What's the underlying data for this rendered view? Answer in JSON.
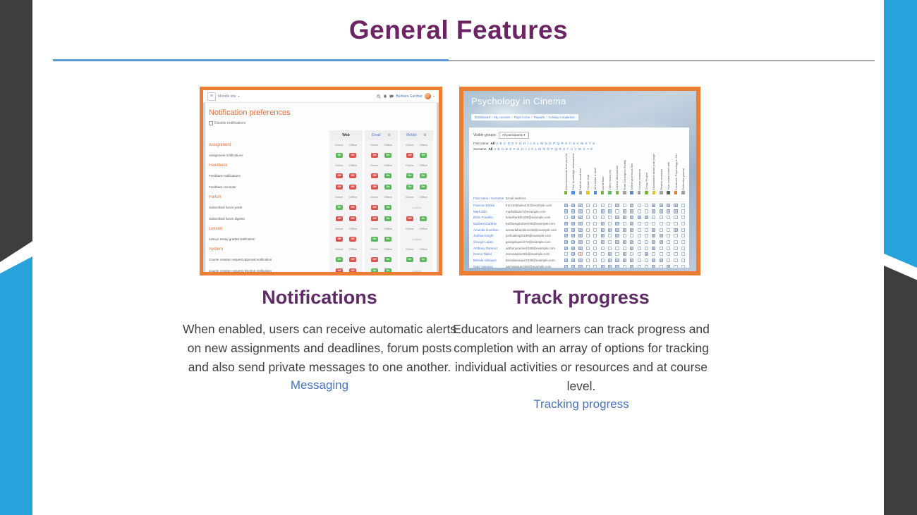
{
  "slide": {
    "title": "General Features"
  },
  "colors": {
    "title_purple": "#6D2465",
    "heading_purple": "#5E2B66",
    "link_blue": "#4472C4",
    "divider_blue": "#5B9BD5",
    "divider_gray": "#A6A6A6",
    "edge_blue": "#27A2DB",
    "edge_dark": "#3E3E3E",
    "screenshot_border_orange": "#ED7D31",
    "moodle_orange": "#EE6A31",
    "toggle_on_green": "#5CB85C",
    "toggle_off_red": "#D9534F"
  },
  "features": [
    {
      "heading": "Notifications",
      "body": "When enabled, users can receive automatic alerts on new assignments and deadlines, forum posts and also send private messages to one another.",
      "link": "Messaging"
    },
    {
      "heading": "Track progress",
      "body": "Educators and learners can track progress and completion with an array of options for tracking individual activities or resources and at course level.",
      "link": "Tracking progress"
    }
  ],
  "notification_screenshot": {
    "navbar": {
      "menu_icon": "hamburger-icon",
      "site_label": "Moodle site",
      "icons": [
        "search-icon",
        "bell-icon",
        "chat-icon"
      ],
      "user": "Barbara Gardner"
    },
    "page_title": "Notification preferences",
    "disable_label": "Disable notifications",
    "channels": [
      {
        "label": "Web",
        "gear": false
      },
      {
        "label": "Email",
        "gear": true
      },
      {
        "label": "Mobile",
        "gear": true
      }
    ],
    "online_label": "Online",
    "offline_label": "Offline",
    "locked_label": "Locked",
    "on_label": "On",
    "off_label": "Off",
    "rows": [
      {
        "type": "section",
        "label": "Assignment"
      },
      {
        "type": "item",
        "label": "Assignment notifications",
        "web": [
          "on",
          "off"
        ],
        "email": [
          "off",
          "on"
        ],
        "mobile": [
          "off",
          "on"
        ]
      },
      {
        "type": "section",
        "label": "Feedback"
      },
      {
        "type": "item",
        "label": "Feedback notifications",
        "web": [
          "off",
          "off"
        ],
        "email": [
          "off",
          "on"
        ],
        "mobile": [
          "on",
          "on"
        ]
      },
      {
        "type": "item",
        "label": "Feedback reminder",
        "web": [
          "off",
          "off"
        ],
        "email": [
          "off",
          "on"
        ],
        "mobile": [
          "on",
          "on"
        ]
      },
      {
        "type": "section",
        "label": "Forum"
      },
      {
        "type": "item",
        "label": "Subscribed forum posts",
        "web": [
          "on",
          "off"
        ],
        "email": [
          "off",
          "on"
        ],
        "mobile": "locked"
      },
      {
        "type": "item",
        "label": "Subscribed forum digests",
        "web": [
          "off",
          "off"
        ],
        "email": [
          "off",
          "on"
        ],
        "mobile": [
          "off",
          "on"
        ]
      },
      {
        "type": "section",
        "label": "Lesson"
      },
      {
        "type": "item",
        "label": "Lesson essay graded notification",
        "web": [
          "off",
          "off"
        ],
        "email": [
          "on",
          "on"
        ],
        "mobile": "locked"
      },
      {
        "type": "section",
        "label": "System"
      },
      {
        "type": "item",
        "label": "Course creation request approval notification",
        "web": [
          "on",
          "off"
        ],
        "email": [
          "off",
          "on"
        ],
        "mobile": [
          "on",
          "on"
        ]
      },
      {
        "type": "item",
        "label": "Course creation request rejection notification",
        "web": [
          "off",
          "off"
        ],
        "email": [
          "on",
          "on"
        ],
        "mobile": "locked"
      }
    ]
  },
  "progress_screenshot": {
    "course_title": "Psychology in Cinema",
    "breadcrumb": [
      "Dashboard",
      "My courses",
      "Psych Cine",
      "Reports",
      "Activity completion"
    ],
    "visible_groups_label": "Visible groups:",
    "visible_groups_value": "All participants",
    "first_name_label": "First name:",
    "surname_label": "Surname:",
    "all_label": "All",
    "letters": "A B C D E F G H I J K L M N O P Q R S T U V W X Y Z",
    "name_col_header": "First name / Surname",
    "email_col_header": "Email address",
    "activities": [
      {
        "name": "Announcements from your tutor",
        "icon_color": "#7CB342"
      },
      {
        "name": "Prior Knowledge assessment",
        "icon_color": "#4A90D9"
      },
      {
        "name": "Factual recall test",
        "icon_color": "#9E9E9E"
      },
      {
        "name": "Course chat",
        "icon_color": "#F0C419"
      },
      {
        "name": "Let's make a deal!",
        "icon_color": "#4A90D9"
      },
      {
        "name": "Useful links",
        "icon_color": "#7CB342"
      },
      {
        "name": "Video resources",
        "icon_color": "#66BB6A"
      },
      {
        "name": "Course discussions",
        "icon_color": "#7CB342"
      },
      {
        "name": "From Concept to Reality",
        "icon_color": "#9E9E9E"
      },
      {
        "name": "Select your focus film",
        "icon_color": "#4A90D9"
      },
      {
        "name": "Course research",
        "icon_color": "#9E9E9E"
      },
      {
        "name": "Group Project",
        "icon_color": "#7CB342"
      },
      {
        "name": "Discussions about your project",
        "icon_color": "#F0C419"
      },
      {
        "name": "Review sessions",
        "icon_color": "#9E9E9E"
      },
      {
        "name": "Your course notes wiki",
        "icon_color": "#616161"
      },
      {
        "name": "Feedback: Psychology in Cinema",
        "icon_color": "#E67E22"
      },
      {
        "name": "Reflective journal",
        "icon_color": "#9E9E9E"
      }
    ],
    "students": [
      {
        "name": "Frances Banks",
        "email": "francesbanks211@example.com",
        "marks": "11100001010011110"
      },
      {
        "name": "Mark Ellis",
        "email": "markellis267@example.com",
        "marks": "11100110110011110"
      },
      {
        "name": "Brian Franklin",
        "email": "brianfranklin238@example.com",
        "marks": "01100001111100000"
      },
      {
        "name": "Barbara Gardner",
        "email": "barbaragardner246@example.com",
        "marks": "11100101010000000"
      },
      {
        "name": "Amanda Hamilton",
        "email": "amandahamilton248@example.com",
        "marks": "11100111110010010"
      },
      {
        "name": "Joshua Knight",
        "email": "joshuaknight199@example.com",
        "marks": "11100101000011000"
      },
      {
        "name": "George Lopez",
        "email": "georgelopez271@example.com",
        "marks": "11100101110011000"
      },
      {
        "name": "Anthony Ramirez",
        "email": "anthonyramirez208@example.com",
        "marks": "11100000010010000"
      },
      {
        "name": "Donna Taylor",
        "email": "donnataylor201@example.com",
        "marks": "01x00010100100000"
      },
      {
        "name": "Brenda Vasquez",
        "email": "brendavasquez239@example.com",
        "marks": "11100011110011000"
      },
      {
        "name": "Gary Vasquez",
        "email": "garyvasquez300@example.com",
        "marks": "11100111010010100"
      }
    ]
  }
}
